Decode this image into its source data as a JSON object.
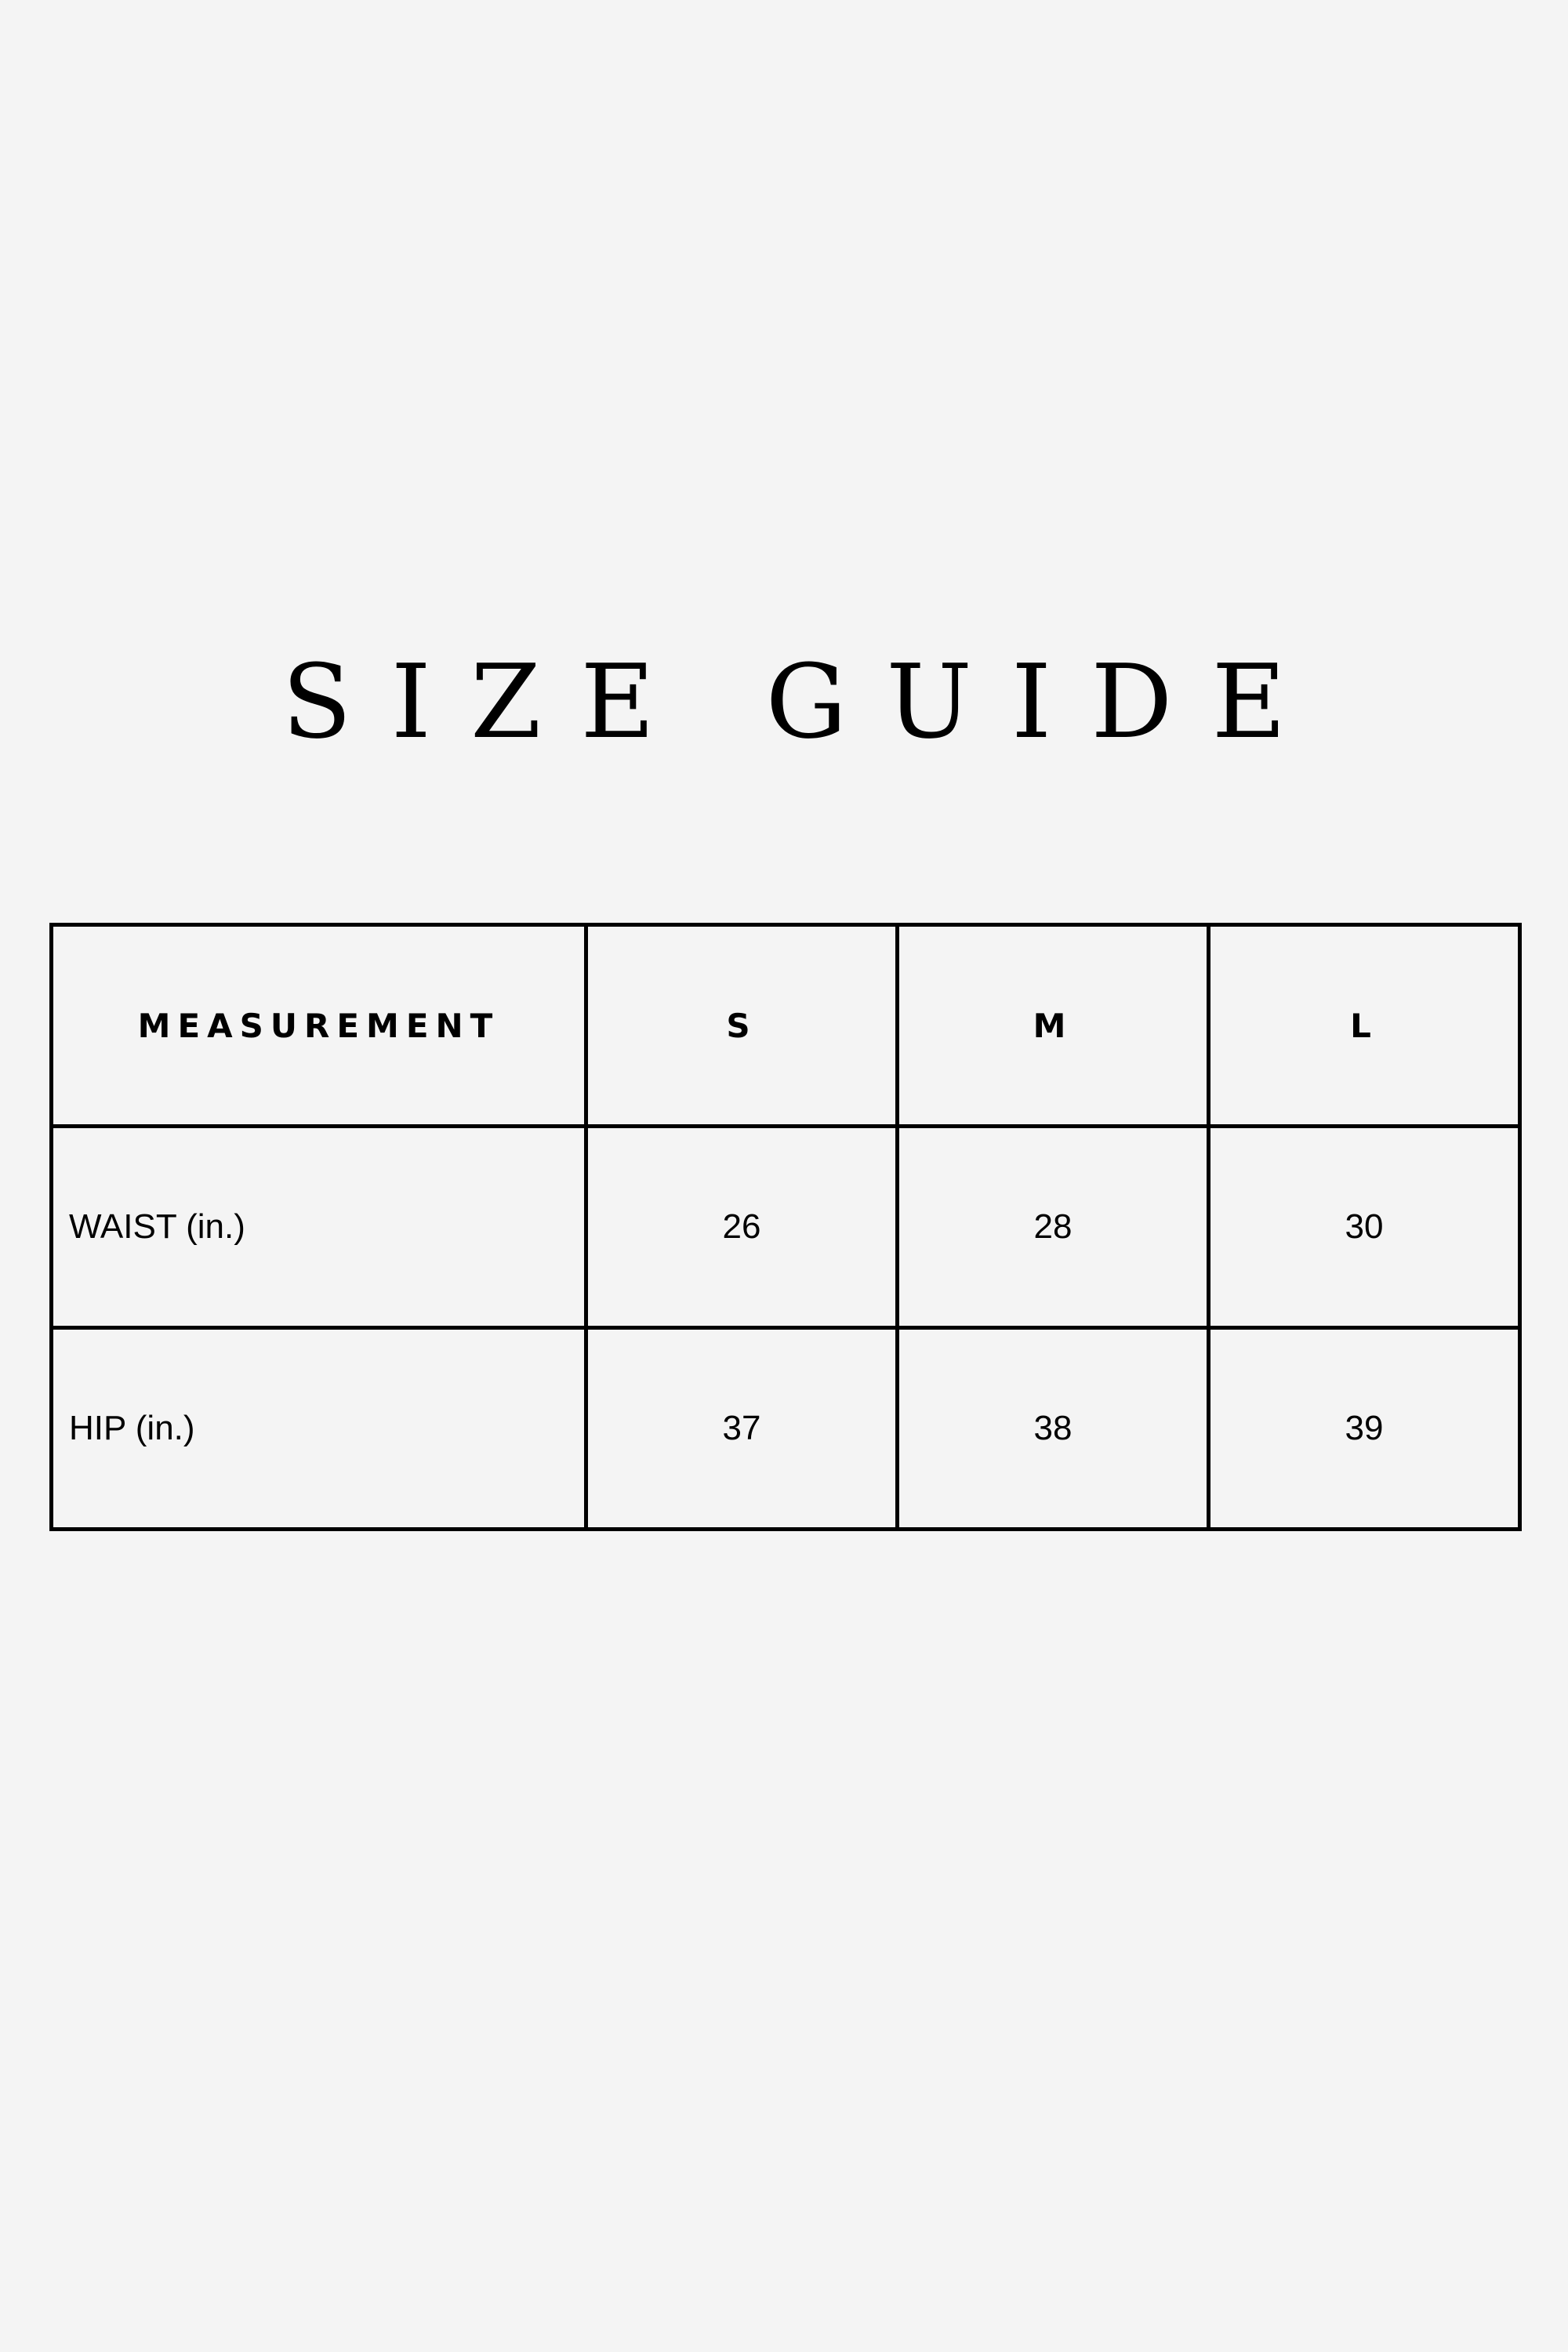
{
  "title": "SIZE GUIDE",
  "table": {
    "headers": [
      "MEASUREMENT",
      "S",
      "M",
      "L"
    ],
    "rows": [
      [
        "WAIST (in.)",
        "26",
        "28",
        "30"
      ],
      [
        "HIP (in.)",
        "37",
        "38",
        "39"
      ]
    ]
  },
  "colors": {
    "background": "#f4f4f4",
    "text": "#000000",
    "border": "#000000"
  }
}
